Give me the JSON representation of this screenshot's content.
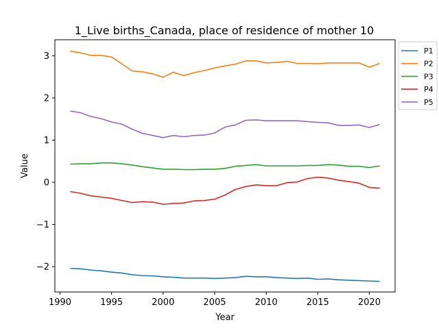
{
  "chart_data": {
    "type": "line",
    "title": "1_Live births_Canada, place of residence of mother 10",
    "xlabel": "Year",
    "ylabel": "Value",
    "xlim": [
      1989.5,
      2022.5
    ],
    "ylim": [
      -2.6,
      3.38
    ],
    "xticks": [
      1990,
      1995,
      2000,
      2005,
      2010,
      2015,
      2020
    ],
    "yticks": [
      -2,
      -1,
      0,
      1,
      2,
      3
    ],
    "grid": false,
    "legend_position": "outside-top-right",
    "x": [
      1991,
      1992,
      1993,
      1994,
      1995,
      1996,
      1997,
      1998,
      1999,
      2000,
      2001,
      2002,
      2003,
      2004,
      2005,
      2006,
      2007,
      2008,
      2009,
      2010,
      2011,
      2012,
      2013,
      2014,
      2015,
      2016,
      2017,
      2018,
      2019,
      2020,
      2021
    ],
    "series": [
      {
        "name": "P1",
        "color": "#1f77b4",
        "values": [
          -2.04,
          -2.05,
          -2.08,
          -2.1,
          -2.13,
          -2.15,
          -2.19,
          -2.21,
          -2.22,
          -2.24,
          -2.25,
          -2.27,
          -2.27,
          -2.27,
          -2.28,
          -2.27,
          -2.26,
          -2.23,
          -2.24,
          -2.24,
          -2.26,
          -2.27,
          -2.28,
          -2.27,
          -2.3,
          -2.29,
          -2.31,
          -2.32,
          -2.33,
          -2.34,
          -2.35
        ]
      },
      {
        "name": "P2",
        "color": "#ff7f0e",
        "values": [
          3.11,
          3.07,
          3.01,
          3.01,
          2.97,
          2.81,
          2.64,
          2.62,
          2.57,
          2.49,
          2.61,
          2.53,
          2.6,
          2.65,
          2.71,
          2.76,
          2.8,
          2.88,
          2.88,
          2.83,
          2.84,
          2.87,
          2.82,
          2.82,
          2.81,
          2.83,
          2.83,
          2.83,
          2.83,
          2.73,
          2.82
        ]
      },
      {
        "name": "P3",
        "color": "#2ca02c",
        "values": [
          0.43,
          0.44,
          0.44,
          0.46,
          0.46,
          0.44,
          0.41,
          0.37,
          0.34,
          0.31,
          0.31,
          0.3,
          0.3,
          0.31,
          0.31,
          0.33,
          0.38,
          0.4,
          0.42,
          0.39,
          0.39,
          0.39,
          0.39,
          0.4,
          0.4,
          0.42,
          0.41,
          0.38,
          0.38,
          0.35,
          0.39
        ]
      },
      {
        "name": "P4",
        "color": "#d62728",
        "values": [
          -0.22,
          -0.26,
          -0.32,
          -0.35,
          -0.38,
          -0.43,
          -0.48,
          -0.46,
          -0.47,
          -0.52,
          -0.5,
          -0.49,
          -0.44,
          -0.43,
          -0.4,
          -0.3,
          -0.17,
          -0.1,
          -0.06,
          -0.08,
          -0.08,
          -0.01,
          0.01,
          0.09,
          0.12,
          0.1,
          0.05,
          0.02,
          -0.02,
          -0.12,
          -0.14
        ]
      },
      {
        "name": "P5",
        "color": "#9467bd",
        "values": [
          1.69,
          1.65,
          1.56,
          1.51,
          1.43,
          1.38,
          1.26,
          1.16,
          1.11,
          1.06,
          1.11,
          1.08,
          1.11,
          1.12,
          1.17,
          1.31,
          1.36,
          1.47,
          1.48,
          1.46,
          1.46,
          1.46,
          1.46,
          1.44,
          1.42,
          1.41,
          1.35,
          1.35,
          1.36,
          1.3,
          1.37
        ]
      }
    ]
  }
}
